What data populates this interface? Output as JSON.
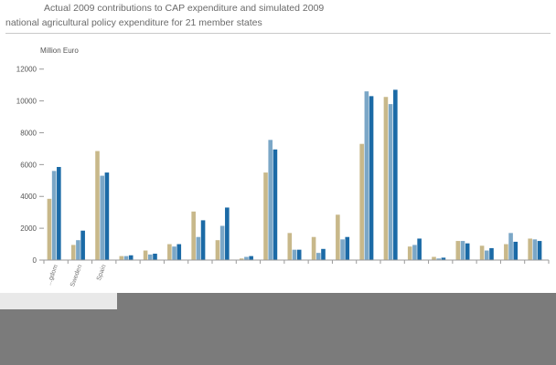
{
  "chart_data": {
    "type": "bar",
    "title": "Actual 2009 contributions to CAP expenditure and simulated 2009 national agricultural policy expenditure for 21 member states",
    "ylabel": "Million Euro",
    "xlabel": "",
    "ylim": [
      0,
      12500
    ],
    "yticks": [
      0,
      2000,
      4000,
      6000,
      8000,
      10000,
      12000
    ],
    "grid": false,
    "legend": "",
    "categories": [
      "...gdom",
      "Sweden",
      "Spain",
      "",
      "",
      "",
      "",
      "",
      "",
      "",
      "",
      "",
      "",
      "",
      "",
      "",
      "",
      "",
      "",
      "",
      ""
    ],
    "series": [
      {
        "color": "#c8b88a",
        "values": [
          3850,
          950,
          6850,
          250,
          600,
          1000,
          3050,
          1250,
          100,
          5500,
          1700,
          1450,
          2850,
          7300,
          10250,
          850,
          200,
          1200,
          900,
          1000,
          1350
        ]
      },
      {
        "color": "#7ba7c7",
        "values": [
          5600,
          1250,
          5300,
          250,
          350,
          850,
          1450,
          2150,
          200,
          7550,
          650,
          450,
          1300,
          10600,
          9800,
          950,
          100,
          1200,
          600,
          1700,
          1300
        ]
      },
      {
        "color": "#1b6aa6",
        "values": [
          5850,
          1850,
          5500,
          300,
          400,
          1000,
          2500,
          3300,
          250,
          6950,
          650,
          700,
          1450,
          10300,
          10700,
          1350,
          150,
          1050,
          750,
          1150,
          1200
        ]
      }
    ]
  },
  "titles": {
    "line1": "Actual 2009 contributions to CAP expenditure and simulated 2009",
    "line2": "national agricultural policy expenditure for 21 member states"
  },
  "colors": {
    "axis": "#9a9a9a",
    "occluder": "#7b7b7b"
  }
}
